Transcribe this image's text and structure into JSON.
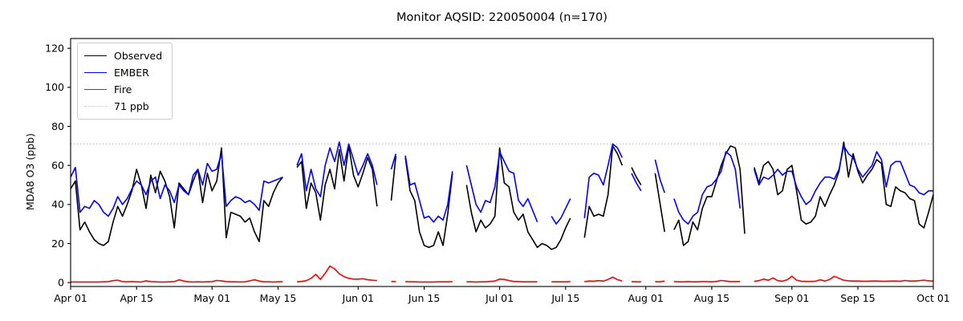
{
  "title": "Monitor AQSID: 220050004 (n=170)",
  "axes": {
    "ylabel": "MDA8 O3 (ppb)",
    "yticks": [
      0,
      20,
      40,
      60,
      80,
      100,
      120
    ],
    "xtick_labels": [
      "Apr 01",
      "Apr 15",
      "May 01",
      "May 15",
      "Jun 01",
      "Jun 15",
      "Jul 01",
      "Jul 15",
      "Aug 01",
      "Aug 15",
      "Sep 01",
      "Sep 15",
      "Oct 01"
    ],
    "xtick_days": [
      0,
      14,
      30,
      44,
      61,
      75,
      91,
      105,
      122,
      136,
      153,
      167,
      183
    ],
    "ylim": [
      -2,
      125
    ],
    "xlim_days": [
      0,
      183
    ],
    "grid": false
  },
  "legend": {
    "position": "upper-left",
    "items": [
      {
        "label": "Observed",
        "color": "#000000",
        "style": "solid"
      },
      {
        "label": "EMBER",
        "color": "#0000ff",
        "style": "solid"
      },
      {
        "label": "Fire",
        "color": "#ff0000",
        "style": "solid"
      },
      {
        "label": "71 ppb",
        "color": "#c8c8c8",
        "style": "dotted"
      }
    ]
  },
  "chart_data": {
    "type": "line",
    "title": "Monitor AQSID: 220050004 (n=170)",
    "xlabel": "",
    "ylabel": "MDA8 O3 (ppb)",
    "x_unit": "days since Apr 01 (daily values, Apr 01 - Oct 01)",
    "reference_line": {
      "value": 71,
      "label": "71 ppb",
      "color": "#c8c8c8",
      "style": "dotted"
    },
    "series": [
      {
        "name": "Observed",
        "color": "#000000",
        "values": [
          48,
          52,
          27,
          31,
          26,
          22,
          20,
          19,
          21,
          31,
          39,
          34,
          40,
          47,
          58,
          50,
          38,
          55,
          46,
          57,
          52,
          44,
          28,
          51,
          48,
          45,
          52,
          58,
          41,
          56,
          47,
          52,
          69,
          23,
          36,
          35,
          34,
          31,
          33,
          26,
          21,
          42,
          39,
          46,
          51,
          54,
          null,
          null,
          59,
          62,
          38,
          51,
          46,
          32,
          50,
          58,
          48,
          68,
          52,
          70,
          55,
          49,
          56,
          64,
          58,
          39,
          null,
          null,
          42,
          65,
          null,
          64,
          47,
          42,
          26,
          19,
          18,
          19,
          26,
          19,
          35,
          56,
          null,
          null,
          50,
          36,
          26,
          32,
          28,
          30,
          34,
          69,
          51,
          49,
          36,
          32,
          35,
          26,
          22,
          18,
          20,
          19,
          17,
          18,
          22,
          28,
          33,
          null,
          null,
          23,
          39,
          34,
          35,
          34,
          45,
          70,
          66,
          60,
          null,
          59,
          54,
          50,
          null,
          null,
          56,
          41,
          26,
          null,
          27,
          32,
          19,
          21,
          31,
          27,
          38,
          44,
          44,
          52,
          60,
          66,
          70,
          69,
          58,
          25,
          null,
          59,
          51,
          60,
          62,
          58,
          45,
          47,
          58,
          60,
          47,
          32,
          30,
          31,
          34,
          44,
          39,
          45,
          50,
          57,
          72,
          54,
          66,
          57,
          51,
          55,
          58,
          63,
          61,
          40,
          39,
          49,
          47,
          46,
          43,
          42,
          30,
          28,
          36,
          45
        ]
      },
      {
        "name": "EMBER",
        "color": "#0000ff",
        "values": [
          54,
          59,
          36,
          39,
          38,
          42,
          40,
          36,
          34,
          38,
          44,
          40,
          43,
          48,
          52,
          50,
          45,
          52,
          54,
          43,
          50,
          47,
          41,
          50,
          47,
          45,
          55,
          58,
          50,
          61,
          57,
          58,
          66,
          39,
          42,
          44,
          43,
          41,
          42,
          40,
          37,
          52,
          51,
          52,
          53,
          54,
          null,
          null,
          60,
          66,
          47,
          58,
          48,
          44,
          60,
          69,
          62,
          72,
          60,
          71,
          63,
          55,
          60,
          66,
          60,
          50,
          null,
          null,
          58,
          66,
          null,
          65,
          50,
          51,
          42,
          33,
          34,
          31,
          34,
          32,
          40,
          57,
          null,
          null,
          60,
          50,
          40,
          36,
          42,
          41,
          49,
          67,
          62,
          57,
          56,
          42,
          39,
          43,
          37,
          31,
          null,
          null,
          34,
          30,
          33,
          38,
          43,
          null,
          null,
          33,
          54,
          56,
          55,
          50,
          60,
          71,
          69,
          64,
          null,
          56,
          51,
          47,
          null,
          null,
          63,
          53,
          46,
          null,
          43,
          36,
          32,
          30,
          34,
          36,
          45,
          49,
          50,
          53,
          57,
          67,
          65,
          58,
          38,
          null,
          null,
          58,
          50,
          54,
          53,
          55,
          58,
          55,
          57,
          57,
          49,
          44,
          40,
          42,
          47,
          51,
          54,
          54,
          53,
          58,
          70,
          66,
          64,
          58,
          54,
          57,
          60,
          67,
          63,
          49,
          60,
          62,
          62,
          56,
          50,
          49,
          46,
          45,
          47,
          47
        ]
      },
      {
        "name": "Fire",
        "color": "#ff0000",
        "values": [
          0.3,
          0.3,
          0.3,
          0.3,
          0.3,
          0.3,
          0.3,
          0.4,
          0.5,
          1.0,
          1.2,
          0.5,
          0.4,
          0.5,
          0.4,
          0.3,
          0.9,
          0.5,
          0.4,
          0.3,
          0.3,
          0.4,
          0.5,
          1.4,
          0.8,
          0.4,
          0.3,
          0.4,
          0.3,
          0.4,
          0.5,
          1.1,
          0.9,
          0.5,
          0.4,
          0.4,
          0.3,
          0.4,
          0.9,
          1.4,
          0.8,
          0.4,
          0.4,
          0.3,
          0.4,
          0.5,
          null,
          null,
          0.4,
          0.6,
          1.0,
          2.2,
          4.2,
          1.6,
          4.8,
          8.5,
          7.0,
          4.5,
          3.0,
          2.2,
          1.8,
          1.8,
          2.0,
          1.5,
          1.2,
          1.0,
          null,
          null,
          0.6,
          0.5,
          null,
          0.5,
          0.4,
          0.4,
          0.3,
          0.3,
          0.3,
          0.3,
          0.4,
          0.4,
          0.4,
          0.5,
          null,
          null,
          0.4,
          0.4,
          0.3,
          0.4,
          0.4,
          0.6,
          0.8,
          1.8,
          1.6,
          1.0,
          0.6,
          0.5,
          0.4,
          0.4,
          0.4,
          0.4,
          null,
          null,
          0.4,
          0.4,
          0.4,
          0.4,
          0.5,
          null,
          null,
          0.5,
          0.8,
          0.7,
          1.0,
          0.8,
          1.6,
          2.8,
          1.5,
          0.8,
          null,
          0.5,
          0.4,
          0.4,
          null,
          null,
          0.5,
          0.4,
          0.8,
          null,
          0.5,
          0.4,
          0.4,
          0.5,
          0.4,
          0.4,
          0.5,
          0.5,
          0.4,
          0.6,
          1.1,
          0.8,
          0.5,
          0.5,
          0.5,
          null,
          null,
          0.6,
          1.0,
          1.8,
          1.2,
          2.4,
          1.0,
          0.7,
          1.4,
          3.3,
          1.2,
          0.7,
          0.6,
          0.6,
          0.7,
          1.4,
          0.8,
          1.6,
          3.2,
          2.2,
          1.2,
          0.9,
          0.8,
          0.8,
          0.7,
          0.7,
          0.8,
          0.8,
          0.7,
          0.7,
          0.8,
          0.8,
          0.7,
          1.1,
          0.8,
          0.8,
          1.0,
          1.2,
          0.9,
          0.8
        ]
      }
    ]
  }
}
